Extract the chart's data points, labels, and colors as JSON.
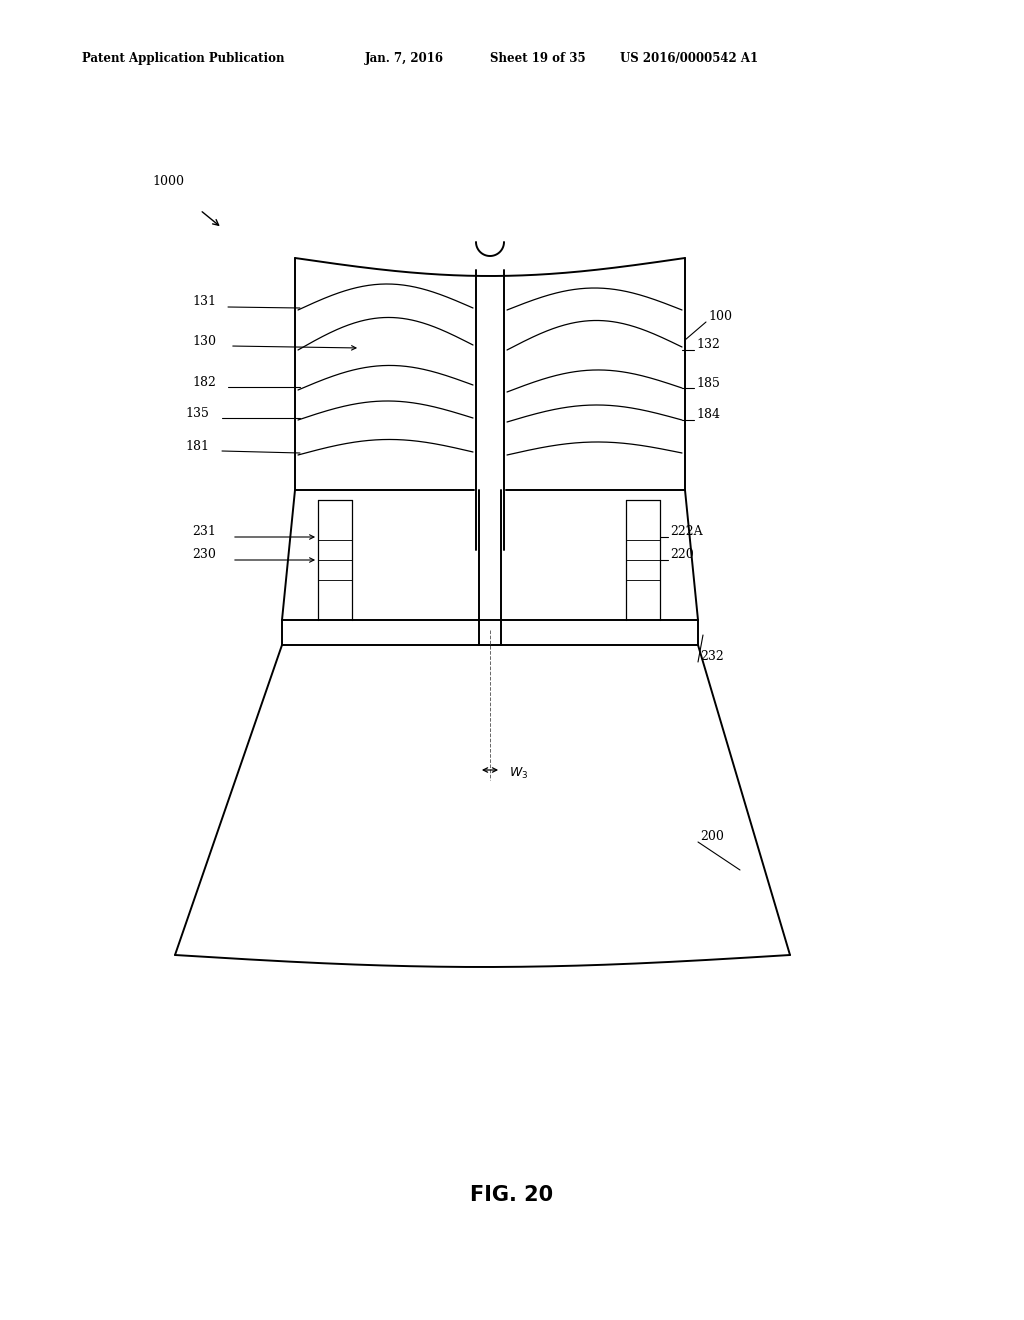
{
  "bg_color": "#ffffff",
  "line_color": "#000000",
  "header_text": "Patent Application Publication",
  "header_date": "Jan. 7, 2016",
  "header_sheet": "Sheet 19 of 35",
  "header_patent": "US 2016/0000542 A1",
  "figure_label": "FIG. 20",
  "lw_main": 1.4,
  "lw_thin": 0.9,
  "lw_leader": 0.8,
  "label_fs": 9,
  "header_fs": 8.5,
  "fig_label_fs": 15
}
